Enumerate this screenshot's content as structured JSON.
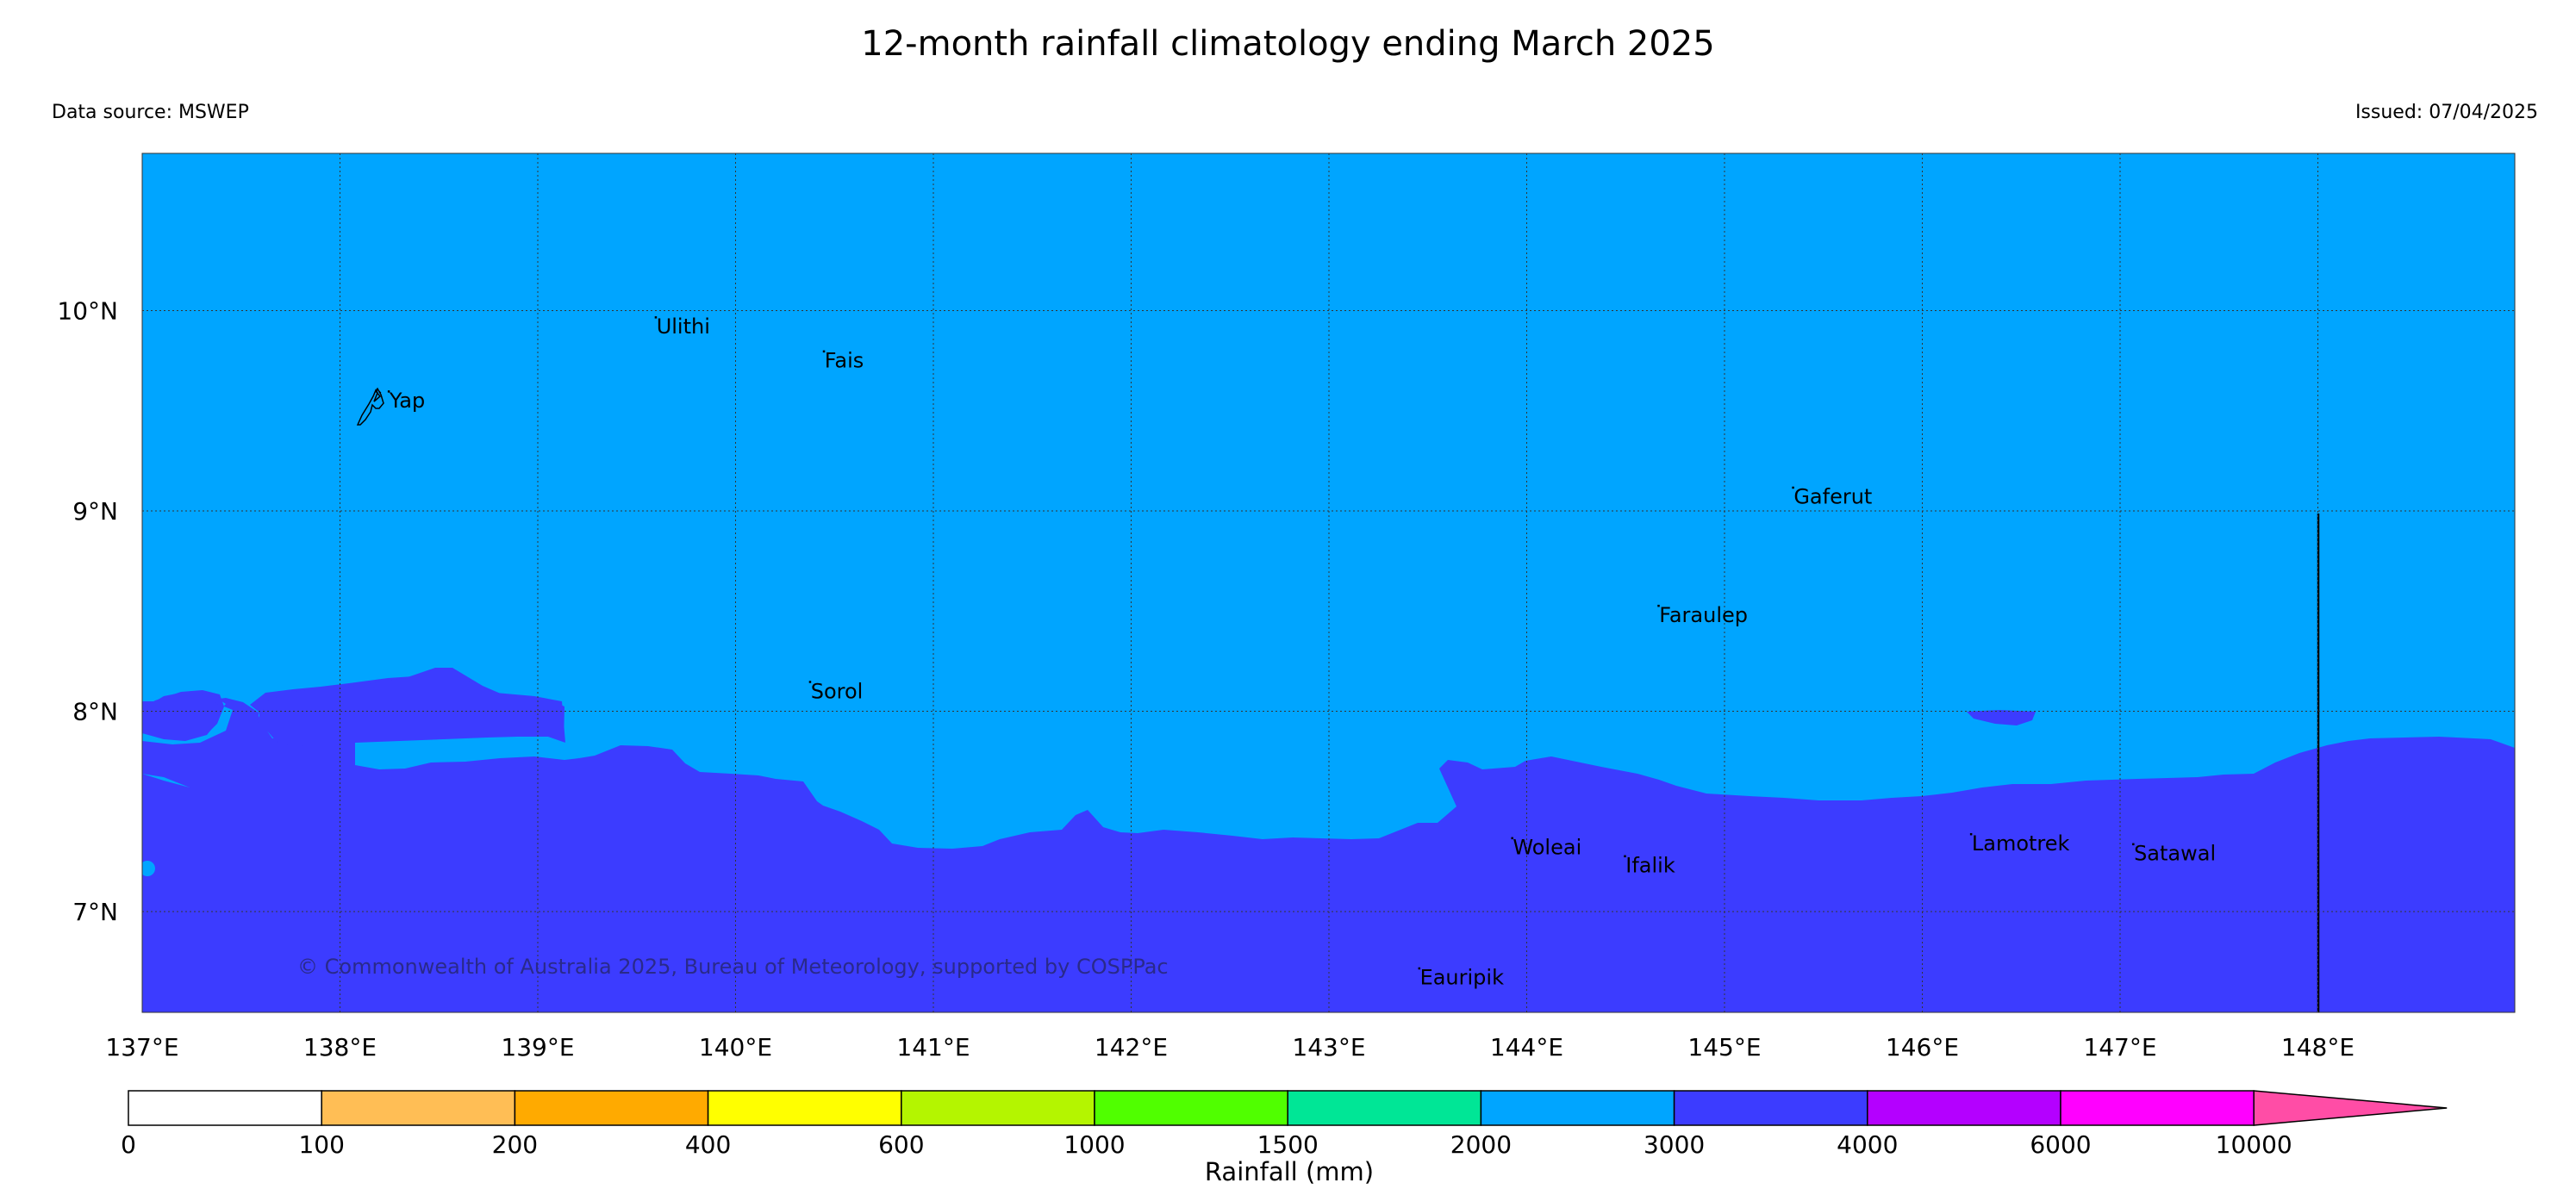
{
  "title": "12-month rainfall climatology ending March 2025",
  "source": "Data source: MSWEP",
  "issued": "Issued: 07/04/2025",
  "copyright": "© Commonwealth of Australia 2025, Bureau of Meteorology, supported by COSPPac",
  "map": {
    "lon_range": [
      137.0,
      149.0
    ],
    "lat_range": [
      6.5,
      10.8
    ],
    "lon_ticks": [
      {
        "v": 137,
        "label": "137°E"
      },
      {
        "v": 138,
        "label": "138°E"
      },
      {
        "v": 139,
        "label": "139°E"
      },
      {
        "v": 140,
        "label": "140°E"
      },
      {
        "v": 141,
        "label": "141°E"
      },
      {
        "v": 142,
        "label": "142°E"
      },
      {
        "v": 143,
        "label": "143°E"
      },
      {
        "v": 144,
        "label": "144°E"
      },
      {
        "v": 145,
        "label": "145°E"
      },
      {
        "v": 146,
        "label": "146°E"
      },
      {
        "v": 147,
        "label": "147°E"
      },
      {
        "v": 148,
        "label": "148°E"
      }
    ],
    "lat_ticks": [
      {
        "v": 10,
        "label": "10°N"
      },
      {
        "v": 9,
        "label": "9°N"
      },
      {
        "v": 8,
        "label": "8°N"
      },
      {
        "v": 7,
        "label": "7°N"
      }
    ],
    "gridlines": true,
    "background_class_color": "#00a5ff",
    "wet_class_color": "#3c3cff",
    "places": [
      {
        "name": "Ulithi",
        "lon": 139.6,
        "lat": 9.92
      },
      {
        "name": "Fais",
        "lon": 140.45,
        "lat": 9.75
      },
      {
        "name": "Yap",
        "lon": 138.25,
        "lat": 9.55
      },
      {
        "name": "Gaferut",
        "lon": 145.35,
        "lat": 9.07
      },
      {
        "name": "Faraulep",
        "lon": 144.67,
        "lat": 8.48
      },
      {
        "name": "Sorol",
        "lon": 140.38,
        "lat": 8.1
      },
      {
        "name": "Woleai",
        "lon": 143.93,
        "lat": 7.32
      },
      {
        "name": "Ifalik",
        "lon": 144.5,
        "lat": 7.23
      },
      {
        "name": "Lamotrek",
        "lon": 146.25,
        "lat": 7.34
      },
      {
        "name": "Satawal",
        "lon": 147.07,
        "lat": 7.29
      },
      {
        "name": "Eauripik",
        "lon": 143.46,
        "lat": 6.67
      }
    ]
  },
  "colorbar": {
    "title": "Rainfall (mm)",
    "tick_labels": [
      "0",
      "100",
      "200",
      "400",
      "600",
      "1000",
      "1500",
      "2000",
      "3000",
      "4000",
      "6000",
      "10000"
    ],
    "colors": [
      "#ffffff",
      "#ffbe55",
      "#ffaa00",
      "#ffff00",
      "#b4f500",
      "#50ff00",
      "#00e696",
      "#00a5ff",
      "#3c3cff",
      "#b400ff",
      "#ff00ff",
      "#ff4da6"
    ],
    "extend": "max"
  }
}
